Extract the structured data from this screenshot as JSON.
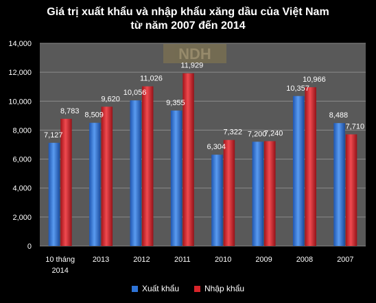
{
  "chart_data": {
    "type": "bar",
    "title": "Giá trị  xuất khẩu và nhập khẩu xăng dầu của Việt Nam",
    "subtitle": "từ năm 2007 đến 2014",
    "categories": [
      "10 tháng\n2014",
      "2013",
      "2012",
      "2011",
      "2010",
      "2009",
      "2008",
      "2007"
    ],
    "series": [
      {
        "name": "Xuất khẩu",
        "color": "#2e73d6",
        "values": [
          7127,
          8509,
          10056,
          9355,
          6304,
          7200,
          10357,
          8488
        ],
        "labels": [
          "7,127",
          "8,509",
          "10,056",
          "9,355",
          "6,304",
          "7,200",
          "10,357",
          "8,488"
        ]
      },
      {
        "name": "Nhập khẩu",
        "color": "#d8242a",
        "values": [
          8783,
          9620,
          11026,
          11929,
          7322,
          7240,
          10966,
          7710
        ],
        "labels": [
          "8,783",
          "9,620",
          "11,026",
          "11,929",
          "7,322",
          "7,240",
          "10,966",
          "7,710"
        ]
      }
    ],
    "ylim": [
      0,
      14000
    ],
    "yticks": [
      0,
      2000,
      4000,
      6000,
      8000,
      10000,
      12000,
      14000
    ],
    "ytick_labels": [
      "0",
      "2,000",
      "4,000",
      "6,000",
      "8,000",
      "10,000",
      "12,000",
      "14,000"
    ],
    "grid": true,
    "legend_position": "bottom",
    "xlabel": "",
    "ylabel": ""
  },
  "watermark": {
    "text": "NDH"
  },
  "colors": {
    "background": "#000000",
    "plot_area": "#595959",
    "grid": "#8c8c8c",
    "text": "#ffffff"
  }
}
